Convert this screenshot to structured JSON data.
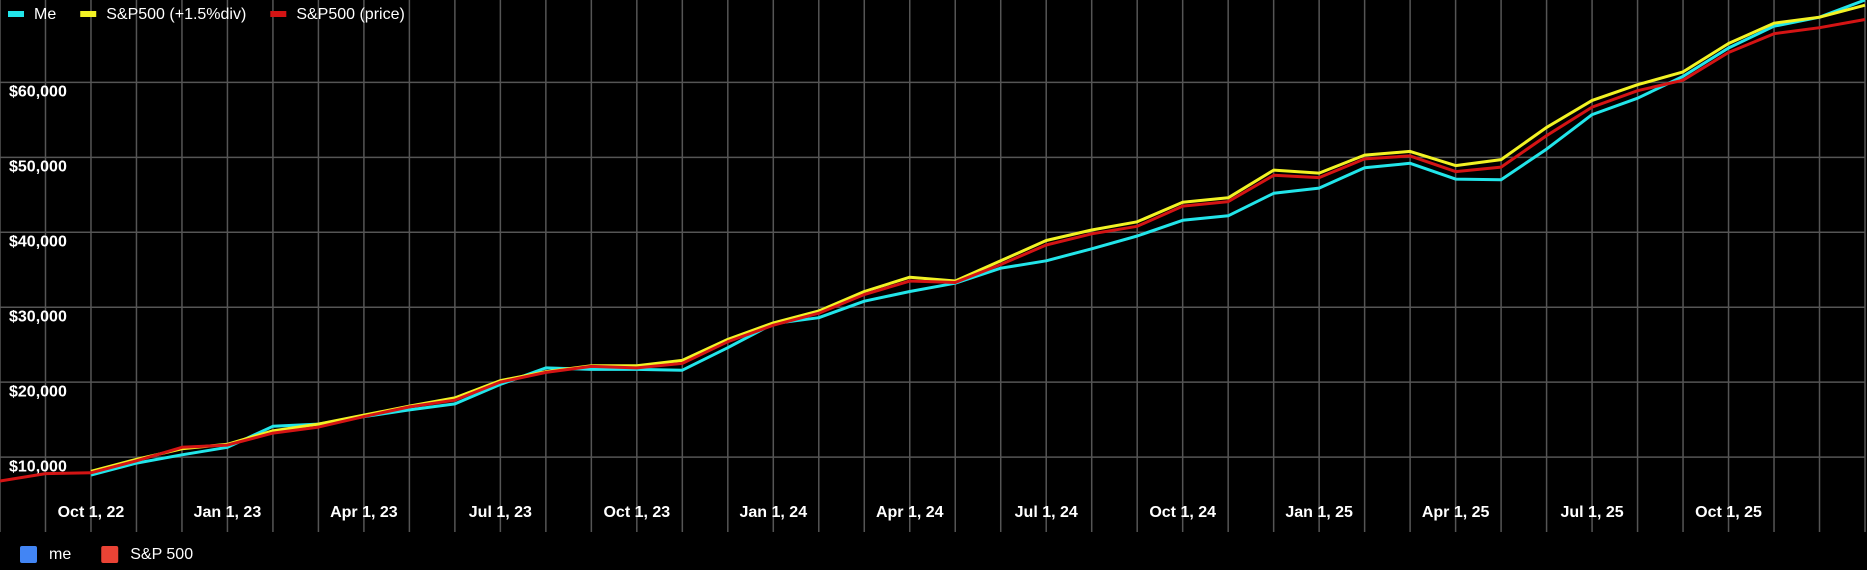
{
  "chart_data": {
    "type": "line",
    "categories": [
      null,
      null,
      "Oct 1, 22",
      null,
      null,
      "Jan 1, 23",
      null,
      null,
      "Apr 1, 23",
      null,
      null,
      "Jul 1, 23",
      null,
      null,
      "Oct 1, 23",
      null,
      null,
      "Jan 1, 24",
      null,
      null,
      "Apr 1, 24",
      null,
      null,
      "Jul 1, 24",
      null,
      null,
      "Oct 1, 24",
      null,
      null,
      "Jan 1, 25",
      null,
      null,
      "Apr 1, 25",
      null,
      null,
      "Jul 1, 25",
      null,
      null,
      "Oct 1, 25",
      null,
      null,
      null
    ],
    "series": [
      {
        "name": "Me",
        "color": "#22e5ea",
        "values": [
          null,
          null,
          7600,
          9200,
          10300,
          11300,
          14100,
          14400,
          15400,
          16300,
          17100,
          19700,
          21900,
          21700,
          21700,
          21600,
          24600,
          27800,
          28600,
          30800,
          32100,
          33200,
          35200,
          36200,
          37800,
          39500,
          41600,
          42200,
          45200,
          45900,
          48600,
          49200,
          47100,
          47000,
          51100,
          55700,
          57900,
          60800,
          64600,
          67500,
          68700,
          71000
        ]
      },
      {
        "name": "S&P500 (+1.5%div)",
        "color": "#f2f224",
        "values": [
          null,
          null,
          8100,
          9700,
          11100,
          11700,
          13500,
          14400,
          15600,
          16800,
          17900,
          20200,
          21400,
          22200,
          22200,
          22900,
          25700,
          27900,
          29500,
          32100,
          34000,
          33500,
          36200,
          38900,
          40300,
          41400,
          44000,
          44600,
          48300,
          47900,
          50300,
          50800,
          48900,
          49700,
          54000,
          57600,
          59700,
          61400,
          65200,
          67900,
          68700,
          70300
        ]
      },
      {
        "name": "S&P500 (price)",
        "color": "#d41414",
        "values": [
          6800,
          7800,
          7900,
          9500,
          11300,
          11600,
          13200,
          14000,
          15400,
          16700,
          17600,
          20000,
          21300,
          22100,
          21900,
          22500,
          25400,
          27600,
          29200,
          31700,
          33500,
          33300,
          35700,
          38300,
          39800,
          40800,
          43500,
          44100,
          47600,
          47300,
          49800,
          50200,
          48100,
          48700,
          52900,
          56700,
          58900,
          60300,
          64000,
          66500,
          67300,
          68400
        ]
      }
    ],
    "ylim": [
      0,
      71000
    ],
    "yticks": [
      {
        "value": 10000,
        "label": "$10,000"
      },
      {
        "value": 20000,
        "label": "$20,000"
      },
      {
        "value": 30000,
        "label": "$30,000"
      },
      {
        "value": 40000,
        "label": "$40,000"
      },
      {
        "value": 50000,
        "label": "$50,000"
      },
      {
        "value": 60000,
        "label": "$60,000"
      }
    ],
    "grid": true,
    "legend": "top-left",
    "secondary_legend": [
      {
        "name": "me",
        "color": "#4285f4"
      },
      {
        "name": "S&P 500",
        "color": "#ea4335"
      }
    ]
  }
}
